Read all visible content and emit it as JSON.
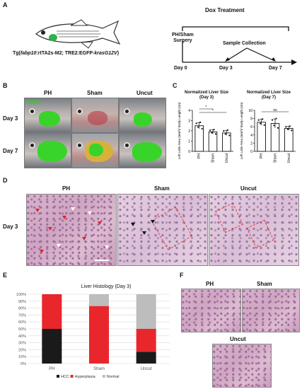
{
  "panels": {
    "a": "A",
    "b": "B",
    "c": "C",
    "d": "D",
    "e": "E",
    "f": "F"
  },
  "panel_a": {
    "genotype_prefix": "Tg(",
    "genotype_italic1": "fabp10",
    "genotype_mid": ":rtTA2s-M2; TRE2:EGFP-",
    "genotype_italic2": "krasG12V",
    "genotype_suffix": ")",
    "dox_treatment": "Dox Treatment",
    "surgery_line1": "PH/Sham",
    "surgery_line2": "Surgery",
    "sample_collection": "Sample Collection",
    "days": [
      "Day 0",
      "Day 3",
      "Day 7"
    ]
  },
  "panel_b": {
    "columns": [
      "PH",
      "Sham",
      "Uncut"
    ],
    "rows": [
      "Day 3",
      "Day 7"
    ],
    "egfp_label": "EGFP",
    "colors": {
      "egfp": "#39d42a",
      "label_green": "#2fd11c"
    }
  },
  "panel_c": {
    "ylabel": "Left Lobe Area (mm²)/ Body Length (cm)",
    "charts": [
      {
        "title": "Normalized Liver Size",
        "subtitle": "(Day 3)",
        "type": "bar",
        "categories": [
          "PH",
          "Sham",
          "Uncut"
        ],
        "values": [
          2.5,
          1.9,
          1.8
        ],
        "errors": [
          0.3,
          0.2,
          0.25
        ],
        "ylim": [
          0,
          4
        ],
        "yticks": [
          "0",
          "1",
          "2",
          "3",
          "4"
        ],
        "sig": [
          {
            "from": 0,
            "to": 1,
            "label": "*"
          },
          {
            "from": 0,
            "to": 2,
            "label": "*"
          }
        ]
      },
      {
        "title": "Normalized Liver Size",
        "subtitle": "(Day 7)",
        "type": "bar",
        "categories": [
          "PH",
          "Sham",
          "Uncut"
        ],
        "values": [
          7.1,
          6.8,
          5.6
        ],
        "errors": [
          0.7,
          1.1,
          0.5
        ],
        "ylim": [
          0,
          10
        ],
        "yticks": [
          "0",
          "2",
          "4",
          "6",
          "8",
          "10"
        ],
        "sig": [
          {
            "from": 0,
            "to": 2,
            "label": "ns"
          }
        ]
      }
    ]
  },
  "panel_d": {
    "columns": [
      "PH",
      "Sham",
      "Uncut"
    ],
    "row_label": "Day 3"
  },
  "chart_data": {
    "type": "bar",
    "stacked": true,
    "title": "Liver Histology (Day 3)",
    "categories": [
      "PH",
      "Sham",
      "Uncut"
    ],
    "series": [
      {
        "name": "HCC",
        "values": [
          50,
          0,
          17
        ],
        "color": "#1a1a1a"
      },
      {
        "name": "Hyperplasia",
        "values": [
          50,
          83,
          33
        ],
        "color": "#e8262c"
      },
      {
        "name": "Normal",
        "values": [
          0,
          17,
          50
        ],
        "color": "#bdbdbd"
      }
    ],
    "yticks": [
      "0%",
      "10%",
      "20%",
      "30%",
      "40%",
      "50%",
      "60%",
      "70%",
      "80%",
      "90%",
      "100%"
    ],
    "ylim": [
      0,
      100
    ],
    "legend_position": "bottom"
  },
  "panel_f": {
    "labels": [
      "PH",
      "Sham",
      "Uncut"
    ]
  }
}
